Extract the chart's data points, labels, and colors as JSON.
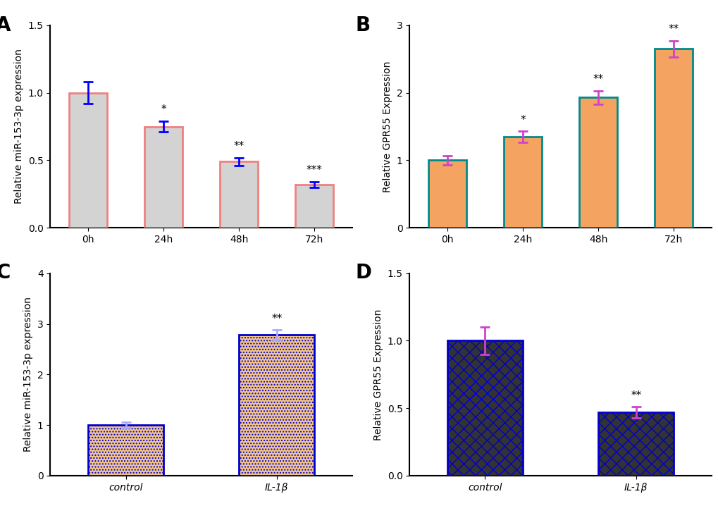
{
  "A": {
    "categories": [
      "0h",
      "24h",
      "48h",
      "72h"
    ],
    "values": [
      1.0,
      0.75,
      0.49,
      0.32
    ],
    "errors": [
      0.08,
      0.04,
      0.03,
      0.02
    ],
    "bar_color": "#d3d3d3",
    "bar_edge_color": "#f08080",
    "error_color": "#0000ff",
    "significance": [
      "",
      "*",
      "**",
      "***"
    ],
    "ylabel": "Relative miR-153-3p expression",
    "ylim": [
      0,
      1.5
    ],
    "yticks": [
      0.0,
      0.5,
      1.0,
      1.5
    ]
  },
  "B": {
    "categories": [
      "0h",
      "24h",
      "48h",
      "72h"
    ],
    "values": [
      1.0,
      1.35,
      1.93,
      2.65
    ],
    "errors": [
      0.07,
      0.08,
      0.1,
      0.12
    ],
    "bar_color": "#f4a460",
    "bar_edge_color": "#008b8b",
    "error_color": "#cc44cc",
    "significance": [
      "",
      "*",
      "**",
      "**"
    ],
    "ylabel": "Relative GPR55 Expression",
    "ylim": [
      0,
      3
    ],
    "yticks": [
      0,
      1,
      2,
      3
    ]
  },
  "C": {
    "categories": [
      "control",
      "IL-1β"
    ],
    "values": [
      1.0,
      2.78
    ],
    "errors": [
      0.06,
      0.1
    ],
    "bar_color": "#f4c58a",
    "bar_edge_color": "#0000cc",
    "error_color": "#aaaaff",
    "significance": [
      "",
      "**"
    ],
    "ylabel": "Relative miR-153-3p expression",
    "ylim": [
      0,
      4
    ],
    "yticks": [
      0,
      1,
      2,
      3,
      4
    ],
    "hatch": "."
  },
  "D": {
    "categories": [
      "control",
      "IL-1β"
    ],
    "values": [
      1.0,
      0.47
    ],
    "errors": [
      0.1,
      0.04
    ],
    "bar_color": "#333333",
    "bar_edge_color": "#0000cc",
    "error_color": "#cc44cc",
    "significance": [
      "",
      "**"
    ],
    "ylabel": "Relative GPR55 Expression",
    "ylim": [
      0,
      1.5
    ],
    "yticks": [
      0.0,
      0.5,
      1.0,
      1.5
    ],
    "hatch": "x"
  },
  "background_color": "#ffffff",
  "panel_label_fontsize": 20,
  "axis_label_fontsize": 10,
  "tick_fontsize": 10,
  "sig_fontsize": 11
}
